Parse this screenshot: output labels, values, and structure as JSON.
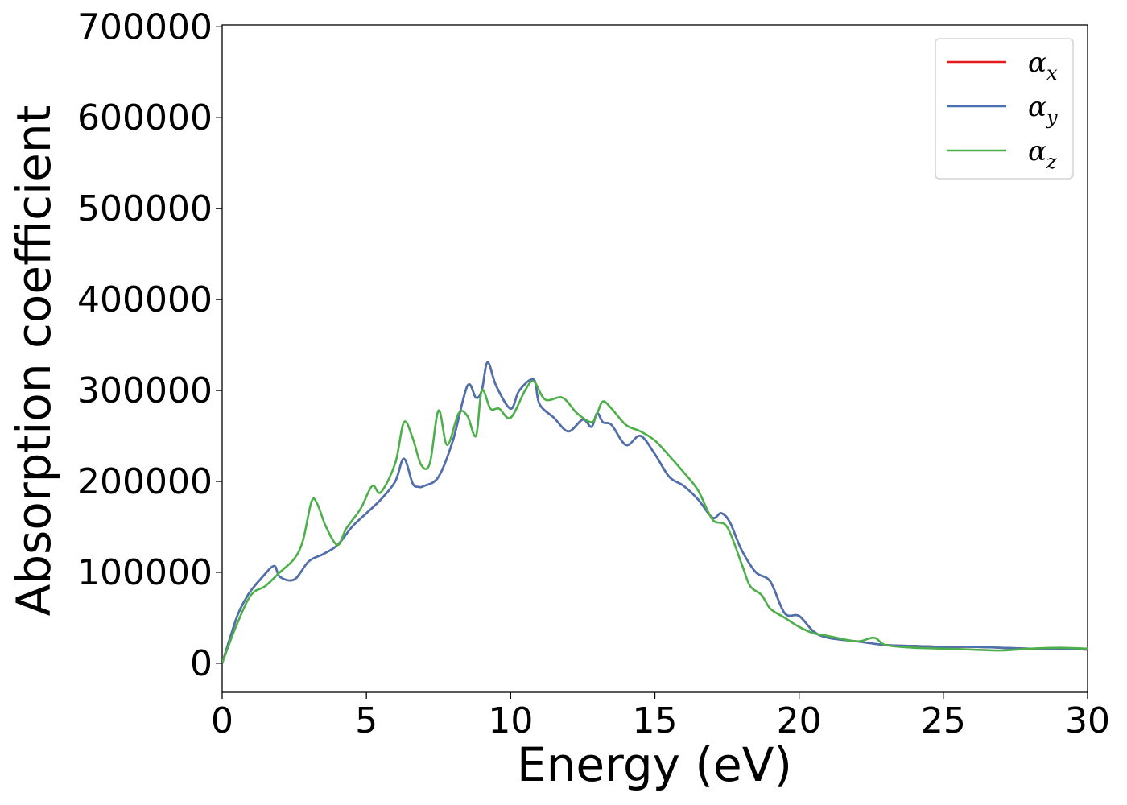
{
  "chart_data": {
    "type": "line",
    "xlabel": "Energy (eV)",
    "ylabel": "Absorption coefficient",
    "xlim": [
      0,
      30
    ],
    "ylim": [
      -32000,
      702000
    ],
    "xticks": [
      0,
      5,
      10,
      15,
      20,
      25,
      30
    ],
    "yticks": [
      0,
      100000,
      200000,
      300000,
      400000,
      500000,
      600000,
      700000
    ],
    "grid": false,
    "legend_position": "top-right",
    "series": [
      {
        "name": "α",
        "subscript": "x",
        "color": "#e41a1c",
        "x": [
          0,
          0.5,
          0.8,
          1,
          1.4,
          1.8,
          2,
          2.5,
          3,
          3.5,
          4,
          4.5,
          5,
          5.5,
          6,
          6.3,
          6.6,
          6.8,
          7,
          7.5,
          8,
          8.5,
          8.8,
          9,
          9.2,
          9.5,
          10,
          10.3,
          10.8,
          11,
          11.5,
          12,
          12.5,
          12.8,
          13,
          13.2,
          13.5,
          14,
          14.5,
          15,
          15.5,
          16,
          16.5,
          17,
          17.3,
          17.6,
          18,
          18.5,
          19,
          19.5,
          20,
          20.5,
          21,
          22,
          23,
          24,
          25,
          26,
          27,
          28,
          29,
          30
        ],
        "y": [
          0,
          50000,
          70000,
          80000,
          95000,
          107000,
          95000,
          92000,
          112000,
          120000,
          130000,
          150000,
          165000,
          180000,
          200000,
          225000,
          198000,
          194000,
          195000,
          205000,
          245000,
          305000,
          292000,
          300000,
          331000,
          305000,
          280000,
          300000,
          312000,
          285000,
          270000,
          255000,
          268000,
          260000,
          275000,
          265000,
          262000,
          240000,
          250000,
          230000,
          205000,
          195000,
          180000,
          160000,
          165000,
          155000,
          125000,
          100000,
          90000,
          55000,
          52000,
          35000,
          28000,
          24000,
          20000,
          19000,
          18000,
          18000,
          17000,
          16000,
          16000,
          15000
        ]
      },
      {
        "name": "α",
        "subscript": "y",
        "color": "#4a72b0",
        "x": [
          0,
          0.5,
          0.8,
          1,
          1.4,
          1.8,
          2,
          2.5,
          3,
          3.5,
          4,
          4.5,
          5,
          5.5,
          6,
          6.3,
          6.6,
          6.8,
          7,
          7.5,
          8,
          8.5,
          8.8,
          9,
          9.2,
          9.5,
          10,
          10.3,
          10.8,
          11,
          11.5,
          12,
          12.5,
          12.8,
          13,
          13.2,
          13.5,
          14,
          14.5,
          15,
          15.5,
          16,
          16.5,
          17,
          17.3,
          17.6,
          18,
          18.5,
          19,
          19.5,
          20,
          20.5,
          21,
          22,
          23,
          24,
          25,
          26,
          27,
          28,
          29,
          30
        ],
        "y": [
          0,
          50000,
          70000,
          80000,
          95000,
          107000,
          95000,
          92000,
          112000,
          120000,
          130000,
          150000,
          165000,
          180000,
          200000,
          225000,
          198000,
          194000,
          195000,
          205000,
          245000,
          305000,
          292000,
          300000,
          331000,
          305000,
          280000,
          300000,
          312000,
          285000,
          270000,
          255000,
          268000,
          260000,
          275000,
          265000,
          262000,
          240000,
          250000,
          230000,
          205000,
          195000,
          180000,
          160000,
          165000,
          155000,
          125000,
          100000,
          90000,
          55000,
          52000,
          35000,
          28000,
          24000,
          20000,
          19000,
          18000,
          18000,
          17000,
          16000,
          16000,
          15000
        ]
      },
      {
        "name": "α",
        "subscript": "z",
        "color": "#4daf4a",
        "x": [
          0,
          0.5,
          1,
          1.5,
          2,
          2.5,
          2.8,
          3.1,
          3.3,
          3.6,
          4,
          4.3,
          4.8,
          5.2,
          5.5,
          6,
          6.3,
          6.6,
          6.9,
          7.2,
          7.5,
          7.8,
          8.2,
          8.5,
          8.8,
          9,
          9.3,
          9.6,
          10,
          10.5,
          10.8,
          11.2,
          11.8,
          12.3,
          12.8,
          13,
          13.2,
          13.5,
          14,
          14.5,
          15,
          15.5,
          16,
          16.5,
          17,
          17.5,
          18,
          18.3,
          18.7,
          19,
          19.5,
          20,
          20.5,
          21,
          22,
          22.6,
          23,
          24,
          25,
          26,
          27,
          28,
          29,
          30
        ],
        "y": [
          0,
          42000,
          75000,
          85000,
          100000,
          115000,
          135000,
          178000,
          175000,
          150000,
          130000,
          148000,
          170000,
          195000,
          188000,
          220000,
          265000,
          248000,
          218000,
          220000,
          278000,
          240000,
          275000,
          272000,
          250000,
          300000,
          280000,
          280000,
          270000,
          300000,
          310000,
          290000,
          292000,
          275000,
          265000,
          275000,
          288000,
          280000,
          262000,
          255000,
          245000,
          228000,
          210000,
          190000,
          158000,
          150000,
          110000,
          85000,
          75000,
          60000,
          50000,
          40000,
          33000,
          30000,
          24000,
          28000,
          20000,
          17000,
          16000,
          15000,
          14000,
          16000,
          17000,
          16000
        ]
      }
    ]
  }
}
